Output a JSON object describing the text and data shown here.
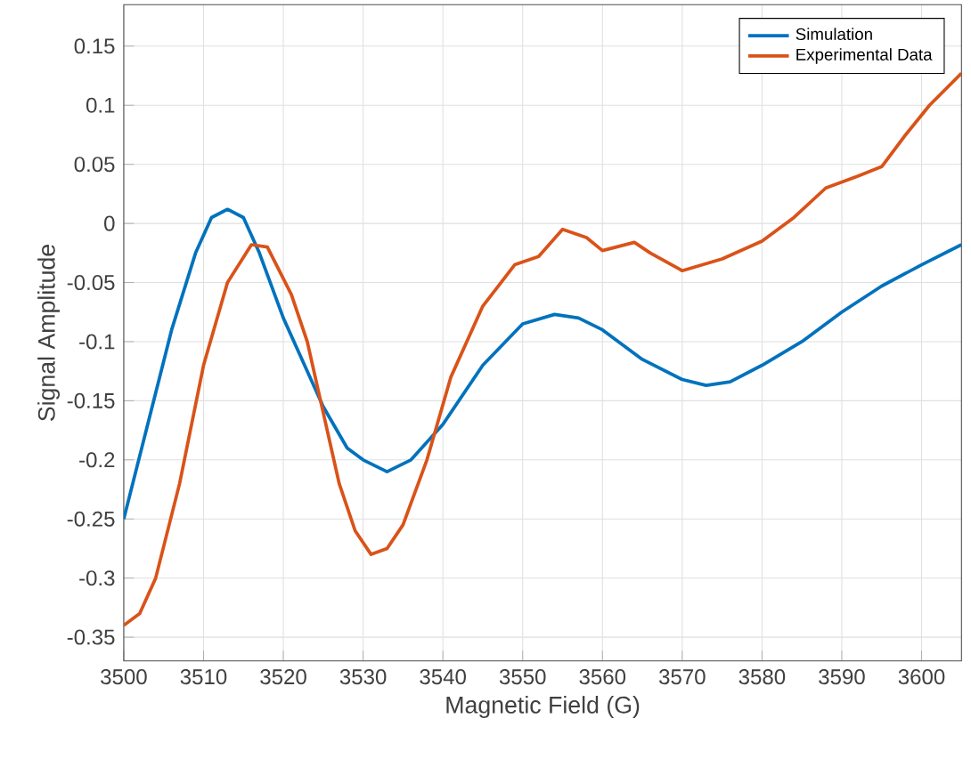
{
  "chart_data": {
    "type": "line",
    "xlabel": "Magnetic Field (G)",
    "ylabel": "Signal Amplitude",
    "xlim": [
      3500,
      3605
    ],
    "ylim": [
      -0.37,
      0.185
    ],
    "xticks": [
      3500,
      3510,
      3520,
      3530,
      3540,
      3550,
      3560,
      3570,
      3580,
      3590,
      3600
    ],
    "yticks": [
      -0.35,
      -0.3,
      -0.25,
      -0.2,
      -0.15,
      -0.1,
      -0.05,
      0,
      0.05,
      0.1,
      0.15
    ],
    "grid": true,
    "legend": "top right",
    "series": [
      {
        "name": "Simulation",
        "color": "#0072bd",
        "x": [
          3500,
          3503,
          3506,
          3509,
          3511,
          3513,
          3515,
          3517,
          3520,
          3522,
          3525,
          3528,
          3530,
          3533,
          3536,
          3540,
          3545,
          3550,
          3554,
          3557,
          3560,
          3565,
          3570,
          3573,
          3576,
          3580,
          3585,
          3590,
          3595,
          3600,
          3605
        ],
        "values": [
          -0.25,
          -0.17,
          -0.09,
          -0.025,
          0.005,
          0.012,
          0.005,
          -0.025,
          -0.08,
          -0.11,
          -0.155,
          -0.19,
          -0.2,
          -0.21,
          -0.2,
          -0.17,
          -0.12,
          -0.085,
          -0.077,
          -0.08,
          -0.09,
          -0.115,
          -0.132,
          -0.137,
          -0.134,
          -0.12,
          -0.1,
          -0.075,
          -0.053,
          -0.035,
          -0.018
        ]
      },
      {
        "name": "Experimental Data",
        "color": "#d95319",
        "x": [
          3500,
          3502,
          3504,
          3507,
          3510,
          3513,
          3516,
          3518,
          3521,
          3523,
          3525,
          3527,
          3529,
          3531,
          3533,
          3535,
          3538,
          3541,
          3545,
          3549,
          3552,
          3555,
          3558,
          3560,
          3564,
          3566,
          3570,
          3575,
          3580,
          3584,
          3588,
          3592,
          3595,
          3598,
          3601,
          3605
        ],
        "values": [
          -0.34,
          -0.33,
          -0.3,
          -0.22,
          -0.12,
          -0.05,
          -0.018,
          -0.02,
          -0.06,
          -0.1,
          -0.16,
          -0.22,
          -0.26,
          -0.28,
          -0.275,
          -0.255,
          -0.2,
          -0.13,
          -0.07,
          -0.035,
          -0.028,
          -0.005,
          -0.012,
          -0.023,
          -0.016,
          -0.025,
          -0.04,
          -0.03,
          -0.015,
          0.005,
          0.03,
          0.04,
          0.048,
          0.075,
          0.1,
          0.127
        ]
      }
    ]
  }
}
